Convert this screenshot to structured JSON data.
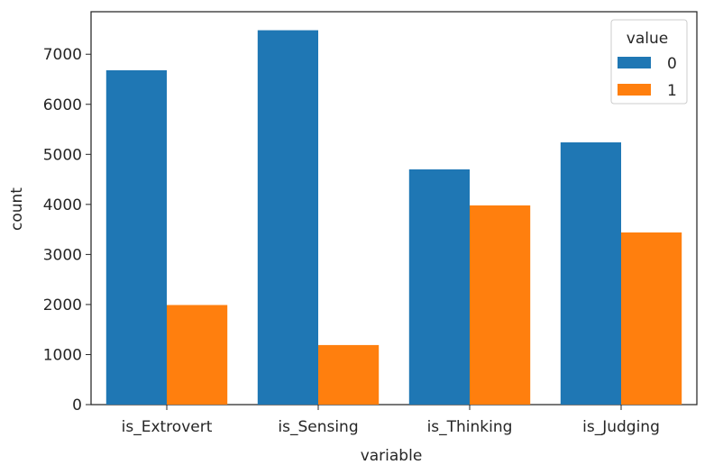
{
  "chart_data": {
    "type": "bar",
    "title": "",
    "xlabel": "variable",
    "ylabel": "count",
    "categories": [
      "is_Extrovert",
      "is_Sensing",
      "is_Thinking",
      "is_Judging"
    ],
    "series": [
      {
        "name": "0",
        "color": "#1f77b4",
        "values": [
          6680,
          7480,
          4700,
          5240
        ]
      },
      {
        "name": "1",
        "color": "#ff7f0e",
        "values": [
          1990,
          1190,
          3980,
          3440
        ]
      }
    ],
    "ylim": [
      0,
      7850
    ],
    "yticks": [
      0,
      1000,
      2000,
      3000,
      4000,
      5000,
      6000,
      7000
    ],
    "grid": false,
    "legend": {
      "title": "value",
      "placement": "top-right"
    }
  }
}
